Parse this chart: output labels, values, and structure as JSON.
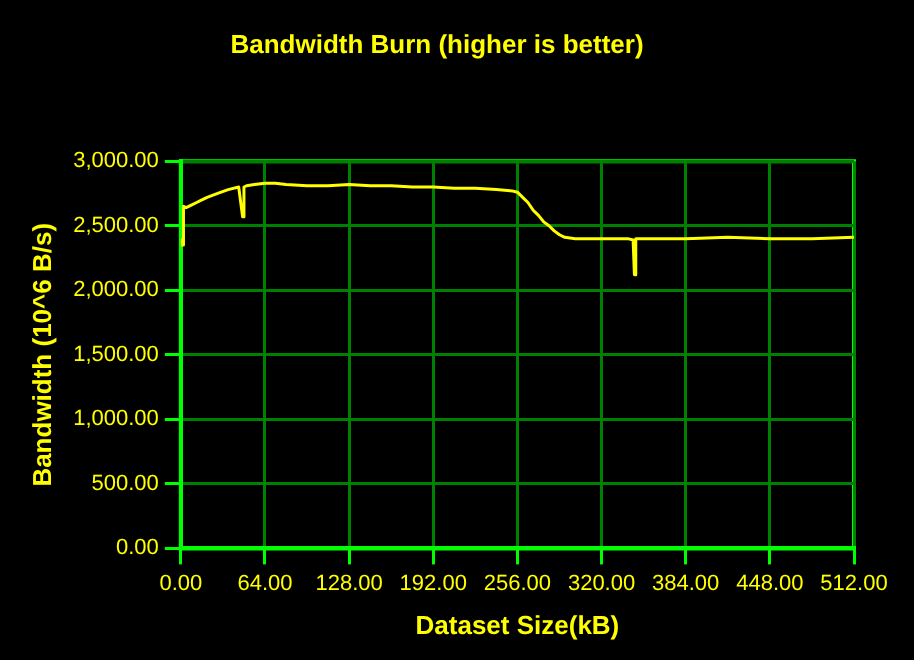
{
  "chart_data": {
    "type": "line",
    "title": "Bandwidth Burn (higher is better)",
    "xlabel": "Dataset Size(kB)",
    "ylabel": "Bandwidth (10^6 B/s)",
    "x": [
      0,
      1,
      2,
      4,
      8,
      12,
      16,
      20,
      28,
      36,
      44,
      47,
      48,
      50,
      56,
      64,
      72,
      80,
      96,
      112,
      128,
      144,
      160,
      176,
      192,
      208,
      224,
      240,
      252,
      256,
      260,
      264,
      268,
      272,
      276,
      280,
      284,
      288,
      292,
      300,
      320,
      340,
      344,
      345,
      346,
      348,
      352,
      384,
      416,
      448,
      480,
      512
    ],
    "series": [
      {
        "color": "#ffff00",
        "values": [
          2400,
          2350,
          2650,
          2640,
          2660,
          2680,
          2700,
          2720,
          2750,
          2780,
          2800,
          2570,
          2800,
          2810,
          2820,
          2830,
          2830,
          2820,
          2810,
          2810,
          2820,
          2810,
          2810,
          2800,
          2800,
          2790,
          2790,
          2780,
          2770,
          2760,
          2720,
          2680,
          2620,
          2580,
          2530,
          2500,
          2460,
          2430,
          2410,
          2400,
          2400,
          2400,
          2390,
          2120,
          2400,
          2400,
          2400,
          2400,
          2410,
          2400,
          2400,
          2410
        ]
      }
    ],
    "xlim": [
      0,
      512
    ],
    "xticks": [
      {
        "value": 0,
        "label": "0.00"
      },
      {
        "value": 64,
        "label": "64.00"
      },
      {
        "value": 128,
        "label": "128.00"
      },
      {
        "value": 192,
        "label": "192.00"
      },
      {
        "value": 256,
        "label": "256.00"
      },
      {
        "value": 320,
        "label": "320.00"
      },
      {
        "value": 384,
        "label": "384.00"
      },
      {
        "value": 448,
        "label": "448.00"
      },
      {
        "value": 512,
        "label": "512.00"
      }
    ],
    "ylim": [
      0,
      3000
    ],
    "yticks": [
      {
        "value": 0,
        "label": "0.00"
      },
      {
        "value": 500,
        "label": "500.00"
      },
      {
        "value": 1000,
        "label": "1,000.00"
      },
      {
        "value": 1500,
        "label": "1,500.00"
      },
      {
        "value": 2000,
        "label": "2,000.00"
      },
      {
        "value": 2500,
        "label": "2,500.00"
      },
      {
        "value": 3000,
        "label": "3,000.00"
      }
    ],
    "grid": true,
    "marker": "none",
    "line_style": "solid"
  }
}
